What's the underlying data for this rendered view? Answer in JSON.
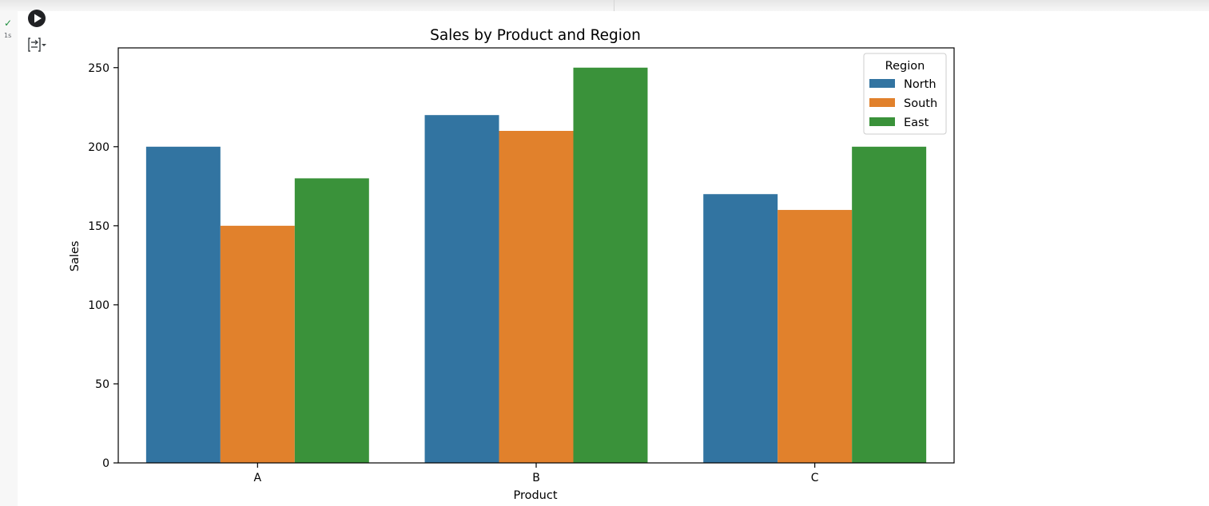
{
  "cell": {
    "status_icon": "check-icon",
    "exec_time": "1s",
    "run_icon": "play-icon",
    "output_icon": "output-toggle-icon"
  },
  "chart_data": {
    "type": "bar",
    "title": "Sales by Product and Region",
    "xlabel": "Product",
    "ylabel": "Sales",
    "categories": [
      "A",
      "B",
      "C"
    ],
    "series": [
      {
        "name": "North",
        "color": "#3274a1",
        "values": [
          200,
          220,
          170
        ]
      },
      {
        "name": "South",
        "color": "#e1812c",
        "values": [
          150,
          210,
          160
        ]
      },
      {
        "name": "East",
        "color": "#3a923a",
        "values": [
          180,
          250,
          200
        ]
      }
    ],
    "ylim": [
      0,
      262.5
    ],
    "yticks": [
      0,
      50,
      100,
      150,
      200,
      250
    ],
    "legend": {
      "title": "Region",
      "placement": "top-right"
    },
    "grid": false
  }
}
